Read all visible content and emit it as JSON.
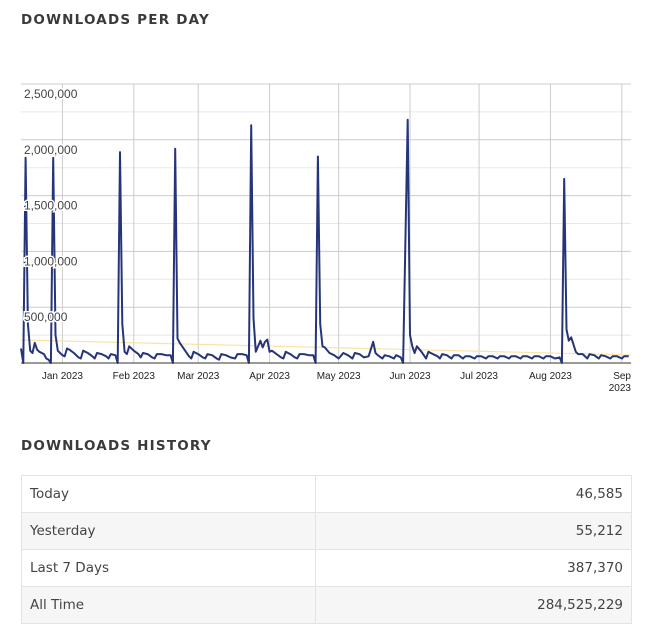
{
  "headings": {
    "per_day": "DOWNLOADS PER DAY",
    "history": "DOWNLOADS HISTORY"
  },
  "colors": {
    "line": "#26357a",
    "trend": "#fbe3a6",
    "grid_major": "#cccccc",
    "grid_minor": "#e8e8e8"
  },
  "history": [
    {
      "label": "Today",
      "value": "46,585"
    },
    {
      "label": "Yesterday",
      "value": "55,212"
    },
    {
      "label": "Last 7 Days",
      "value": "387,370"
    },
    {
      "label": "All Time",
      "value": "284,525,229"
    }
  ],
  "chart_data": {
    "type": "line",
    "title": "DOWNLOADS PER DAY",
    "xlabel": "",
    "ylabel": "",
    "ylim": [
      0,
      2500000
    ],
    "xlim": [
      "2022-12-14",
      "2023-09-05"
    ],
    "grid": true,
    "legend": "none",
    "y_ticks": [
      "500,000",
      "1,000,000",
      "1,500,000",
      "2,000,000",
      "2,500,000"
    ],
    "y_tick_values": [
      500000,
      1000000,
      1500000,
      2000000,
      2500000
    ],
    "x_ticks": [
      {
        "date": "2023-01-01",
        "label": "Jan 2023"
      },
      {
        "date": "2023-02-01",
        "label": "Feb 2023"
      },
      {
        "date": "2023-03-01",
        "label": "Mar 2023"
      },
      {
        "date": "2023-04-01",
        "label": "Apr 2023"
      },
      {
        "date": "2023-05-01",
        "label": "May 2023"
      },
      {
        "date": "2023-06-01",
        "label": "Jun 2023"
      },
      {
        "date": "2023-07-01",
        "label": "Jul 2023"
      },
      {
        "date": "2023-08-01",
        "label": "Aug 2023"
      },
      {
        "date": "2023-09-01",
        "label": "Sep 2023"
      }
    ],
    "trendline": [
      [
        "2022-12-14",
        206000
      ],
      [
        "2023-09-05",
        72000
      ]
    ],
    "series": [
      {
        "points": [
          [
            "2022-12-14",
            130000
          ],
          [
            "2022-12-15",
            0
          ],
          [
            "2022-12-16",
            1840000
          ],
          [
            "2022-12-17",
            350000
          ],
          [
            "2022-12-18",
            110000
          ],
          [
            "2022-12-19",
            90000
          ],
          [
            "2022-12-20",
            180000
          ],
          [
            "2022-12-21",
            120000
          ],
          [
            "2022-12-22",
            100000
          ],
          [
            "2022-12-24",
            80000
          ],
          [
            "2022-12-25",
            40000
          ],
          [
            "2022-12-26",
            30000
          ],
          [
            "2022-12-27",
            0
          ],
          [
            "2022-12-28",
            1840000
          ],
          [
            "2022-12-29",
            250000
          ],
          [
            "2022-12-30",
            110000
          ],
          [
            "2022-12-31",
            90000
          ],
          [
            "2023-01-01",
            70000
          ],
          [
            "2023-01-02",
            60000
          ],
          [
            "2023-01-03",
            130000
          ],
          [
            "2023-01-04",
            120000
          ],
          [
            "2023-01-06",
            90000
          ],
          [
            "2023-01-08",
            50000
          ],
          [
            "2023-01-09",
            40000
          ],
          [
            "2023-01-10",
            110000
          ],
          [
            "2023-01-12",
            90000
          ],
          [
            "2023-01-14",
            60000
          ],
          [
            "2023-01-15",
            40000
          ],
          [
            "2023-01-16",
            90000
          ],
          [
            "2023-01-18",
            80000
          ],
          [
            "2023-01-20",
            60000
          ],
          [
            "2023-01-21",
            40000
          ],
          [
            "2023-01-22",
            80000
          ],
          [
            "2023-01-24",
            70000
          ],
          [
            "2023-01-25",
            0
          ],
          [
            "2023-01-26",
            1890000
          ],
          [
            "2023-01-27",
            350000
          ],
          [
            "2023-01-28",
            100000
          ],
          [
            "2023-01-29",
            80000
          ],
          [
            "2023-01-30",
            150000
          ],
          [
            "2023-02-01",
            110000
          ],
          [
            "2023-02-03",
            80000
          ],
          [
            "2023-02-04",
            50000
          ],
          [
            "2023-02-05",
            90000
          ],
          [
            "2023-02-07",
            80000
          ],
          [
            "2023-02-09",
            50000
          ],
          [
            "2023-02-10",
            40000
          ],
          [
            "2023-02-11",
            80000
          ],
          [
            "2023-02-13",
            80000
          ],
          [
            "2023-02-15",
            70000
          ],
          [
            "2023-02-17",
            70000
          ],
          [
            "2023-02-18",
            0
          ],
          [
            "2023-02-19",
            1920000
          ],
          [
            "2023-02-20",
            220000
          ],
          [
            "2023-02-21",
            180000
          ],
          [
            "2023-02-23",
            120000
          ],
          [
            "2023-02-25",
            60000
          ],
          [
            "2023-02-26",
            40000
          ],
          [
            "2023-02-27",
            100000
          ],
          [
            "2023-03-01",
            80000
          ],
          [
            "2023-03-03",
            50000
          ],
          [
            "2023-03-04",
            40000
          ],
          [
            "2023-03-05",
            80000
          ],
          [
            "2023-03-07",
            70000
          ],
          [
            "2023-03-09",
            40000
          ],
          [
            "2023-03-10",
            30000
          ],
          [
            "2023-03-11",
            80000
          ],
          [
            "2023-03-13",
            70000
          ],
          [
            "2023-03-15",
            50000
          ],
          [
            "2023-03-17",
            40000
          ],
          [
            "2023-03-18",
            80000
          ],
          [
            "2023-03-20",
            80000
          ],
          [
            "2023-03-22",
            70000
          ],
          [
            "2023-03-23",
            0
          ],
          [
            "2023-03-24",
            2130000
          ],
          [
            "2023-03-25",
            400000
          ],
          [
            "2023-03-26",
            100000
          ],
          [
            "2023-03-27",
            150000
          ],
          [
            "2023-03-28",
            200000
          ],
          [
            "2023-03-29",
            140000
          ],
          [
            "2023-03-30",
            190000
          ],
          [
            "2023-03-31",
            210000
          ],
          [
            "2023-04-01",
            100000
          ],
          [
            "2023-04-02",
            110000
          ],
          [
            "2023-04-04",
            80000
          ],
          [
            "2023-04-06",
            50000
          ],
          [
            "2023-04-07",
            40000
          ],
          [
            "2023-04-08",
            100000
          ],
          [
            "2023-04-10",
            80000
          ],
          [
            "2023-04-12",
            50000
          ],
          [
            "2023-04-13",
            40000
          ],
          [
            "2023-04-14",
            80000
          ],
          [
            "2023-04-16",
            80000
          ],
          [
            "2023-04-18",
            70000
          ],
          [
            "2023-04-20",
            70000
          ],
          [
            "2023-04-21",
            0
          ],
          [
            "2023-04-22",
            1850000
          ],
          [
            "2023-04-23",
            350000
          ],
          [
            "2023-04-24",
            150000
          ],
          [
            "2023-04-25",
            140000
          ],
          [
            "2023-04-27",
            90000
          ],
          [
            "2023-04-29",
            70000
          ],
          [
            "2023-05-01",
            40000
          ],
          [
            "2023-05-03",
            90000
          ],
          [
            "2023-05-05",
            70000
          ],
          [
            "2023-05-07",
            40000
          ],
          [
            "2023-05-08",
            90000
          ],
          [
            "2023-05-10",
            80000
          ],
          [
            "2023-05-12",
            50000
          ],
          [
            "2023-05-14",
            60000
          ],
          [
            "2023-05-16",
            190000
          ],
          [
            "2023-05-17",
            90000
          ],
          [
            "2023-05-18",
            70000
          ],
          [
            "2023-05-20",
            40000
          ],
          [
            "2023-05-21",
            70000
          ],
          [
            "2023-05-23",
            60000
          ],
          [
            "2023-05-25",
            40000
          ],
          [
            "2023-05-26",
            70000
          ],
          [
            "2023-05-28",
            50000
          ],
          [
            "2023-05-29",
            0
          ],
          [
            "2023-05-31",
            2180000
          ],
          [
            "2023-06-01",
            250000
          ],
          [
            "2023-06-02",
            150000
          ],
          [
            "2023-06-03",
            90000
          ],
          [
            "2023-06-04",
            150000
          ],
          [
            "2023-06-06",
            100000
          ],
          [
            "2023-06-08",
            40000
          ],
          [
            "2023-06-09",
            100000
          ],
          [
            "2023-06-11",
            80000
          ],
          [
            "2023-06-13",
            60000
          ],
          [
            "2023-06-14",
            40000
          ],
          [
            "2023-06-15",
            80000
          ],
          [
            "2023-06-17",
            70000
          ],
          [
            "2023-06-19",
            40000
          ],
          [
            "2023-06-20",
            70000
          ],
          [
            "2023-06-22",
            70000
          ],
          [
            "2023-06-24",
            40000
          ],
          [
            "2023-06-25",
            60000
          ],
          [
            "2023-06-27",
            60000
          ],
          [
            "2023-06-29",
            40000
          ],
          [
            "2023-06-30",
            60000
          ],
          [
            "2023-07-02",
            60000
          ],
          [
            "2023-07-04",
            40000
          ],
          [
            "2023-07-05",
            60000
          ],
          [
            "2023-07-07",
            60000
          ],
          [
            "2023-07-09",
            40000
          ],
          [
            "2023-07-10",
            60000
          ],
          [
            "2023-07-12",
            60000
          ],
          [
            "2023-07-14",
            40000
          ],
          [
            "2023-07-15",
            60000
          ],
          [
            "2023-07-17",
            60000
          ],
          [
            "2023-07-19",
            40000
          ],
          [
            "2023-07-20",
            60000
          ],
          [
            "2023-07-22",
            60000
          ],
          [
            "2023-07-24",
            40000
          ],
          [
            "2023-07-25",
            60000
          ],
          [
            "2023-07-27",
            60000
          ],
          [
            "2023-07-29",
            40000
          ],
          [
            "2023-07-30",
            60000
          ],
          [
            "2023-08-01",
            60000
          ],
          [
            "2023-08-03",
            40000
          ],
          [
            "2023-08-05",
            50000
          ],
          [
            "2023-08-06",
            0
          ],
          [
            "2023-08-07",
            1650000
          ],
          [
            "2023-08-08",
            300000
          ],
          [
            "2023-08-09",
            200000
          ],
          [
            "2023-08-10",
            230000
          ],
          [
            "2023-08-12",
            100000
          ],
          [
            "2023-08-13",
            80000
          ],
          [
            "2023-08-15",
            80000
          ],
          [
            "2023-08-17",
            40000
          ],
          [
            "2023-08-18",
            80000
          ],
          [
            "2023-08-20",
            70000
          ],
          [
            "2023-08-22",
            40000
          ],
          [
            "2023-08-23",
            70000
          ],
          [
            "2023-08-25",
            60000
          ],
          [
            "2023-08-27",
            40000
          ],
          [
            "2023-08-28",
            60000
          ],
          [
            "2023-08-30",
            60000
          ],
          [
            "2023-09-01",
            40000
          ],
          [
            "2023-09-02",
            60000
          ],
          [
            "2023-09-04",
            60000
          ]
        ]
      }
    ]
  }
}
